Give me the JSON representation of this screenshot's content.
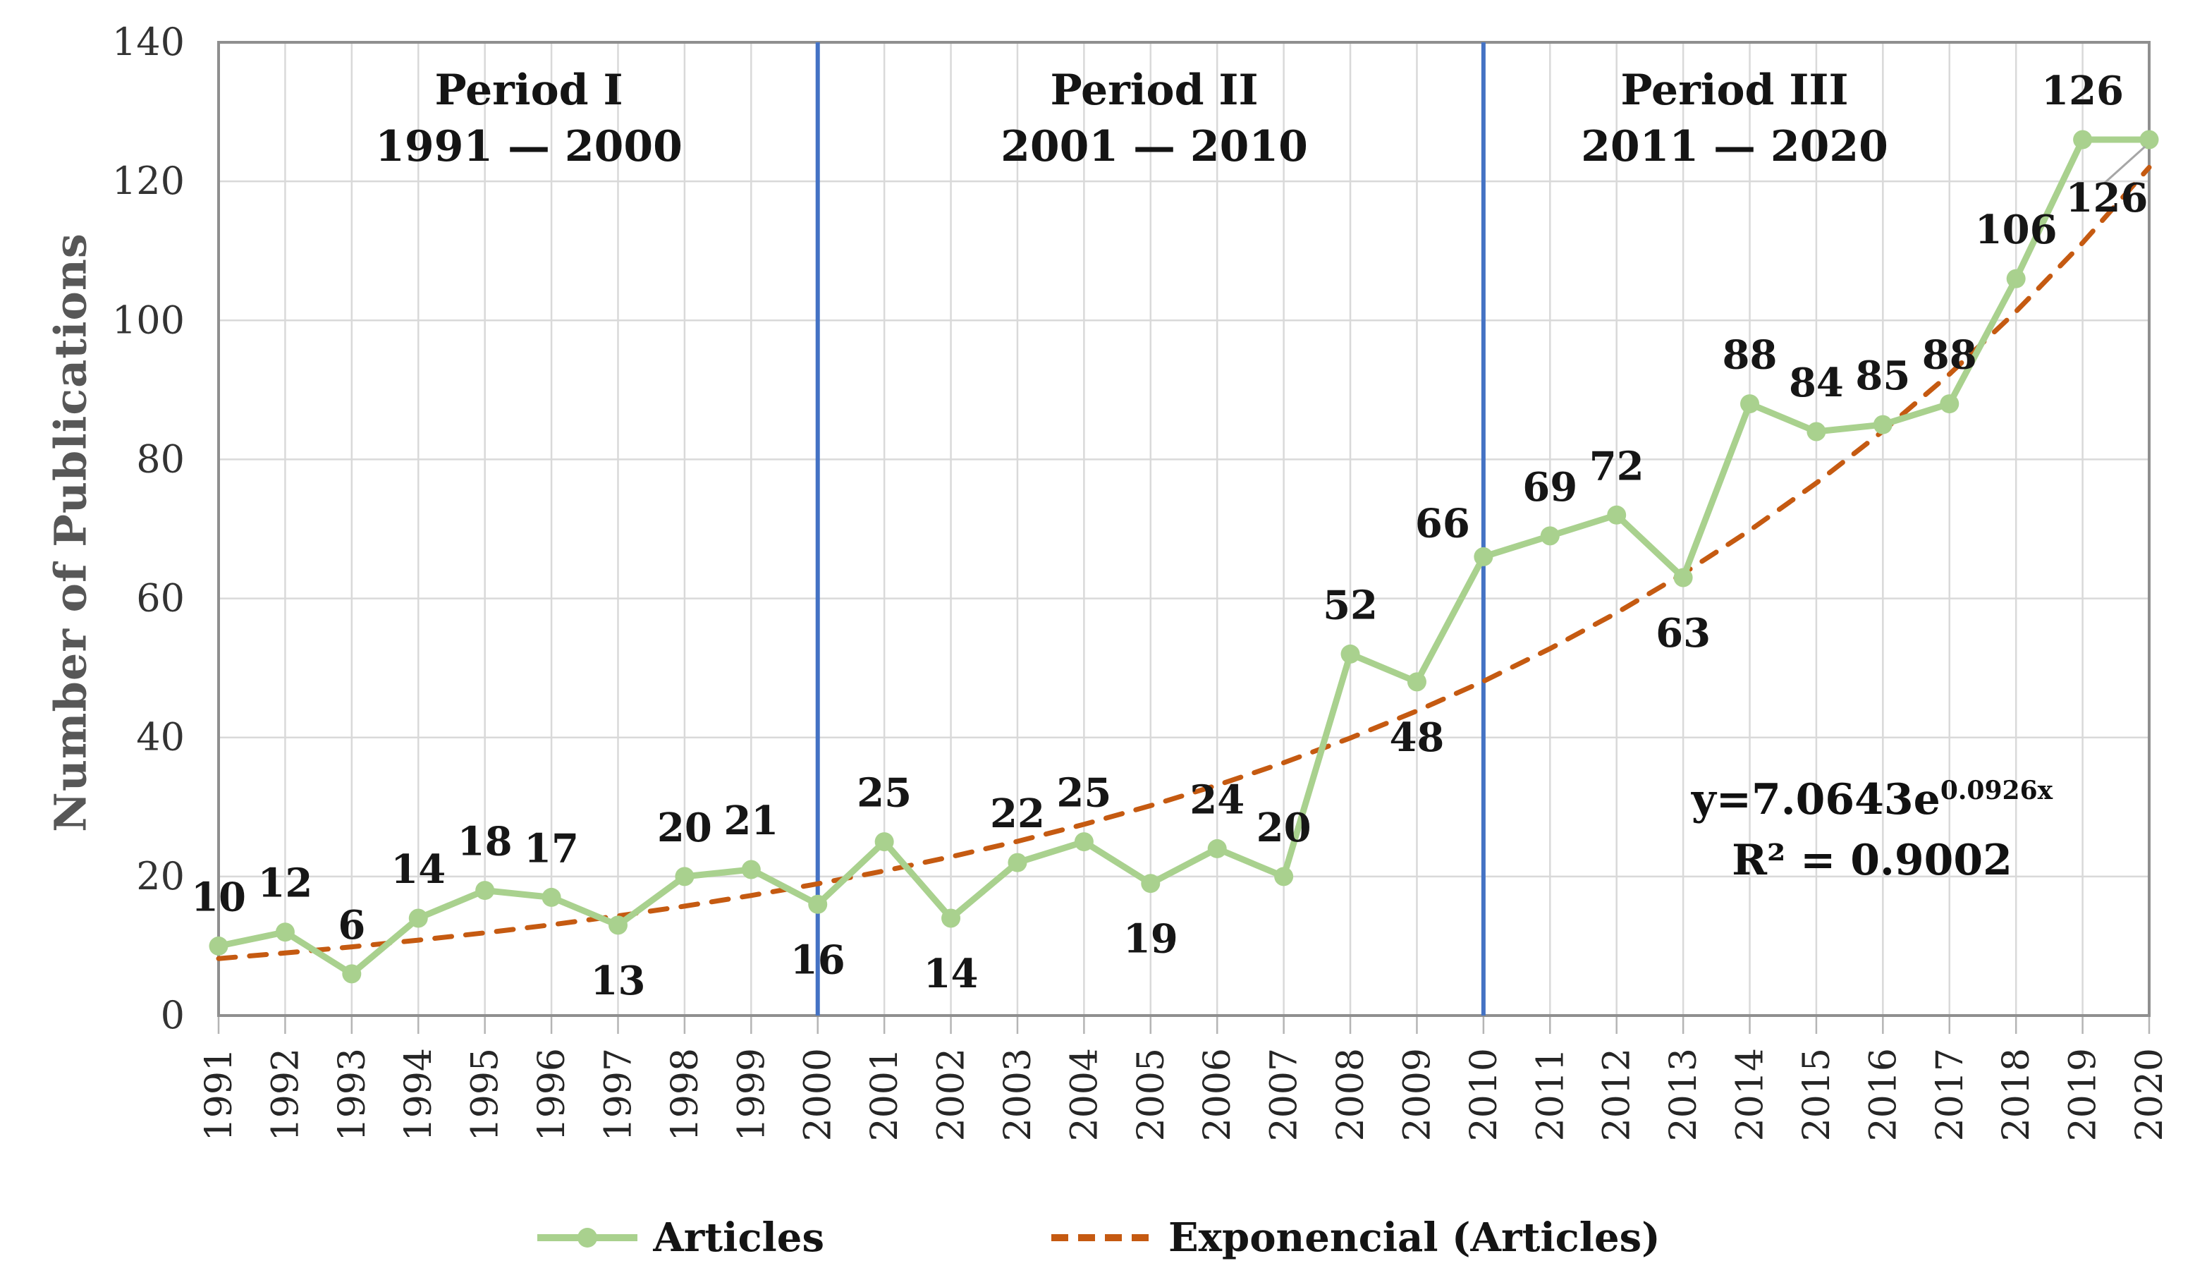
{
  "chart_data": {
    "type": "line",
    "title": "",
    "ylabel": "Number of Publications",
    "xlabel": "",
    "x": [
      1991,
      1992,
      1993,
      1994,
      1995,
      1996,
      1997,
      1998,
      1999,
      2000,
      2001,
      2002,
      2003,
      2004,
      2005,
      2006,
      2007,
      2008,
      2009,
      2010,
      2011,
      2012,
      2013,
      2014,
      2015,
      2016,
      2017,
      2018,
      2019,
      2020
    ],
    "series": [
      {
        "name": "Articles",
        "type": "line_with_markers",
        "color": "#a9d18e",
        "values": [
          10,
          12,
          6,
          14,
          18,
          17,
          13,
          20,
          21,
          16,
          25,
          14,
          22,
          25,
          19,
          24,
          20,
          52,
          48,
          66,
          69,
          72,
          63,
          88,
          84,
          85,
          88,
          106,
          126,
          126
        ]
      },
      {
        "name": "Exponencial (Articles)",
        "type": "exponential_trendline",
        "color": "#c55a11",
        "equation": "y=7.0643e^0.0926x",
        "r_squared": 0.9002
      }
    ],
    "ylim": [
      0,
      140
    ],
    "yticks": [
      0,
      20,
      40,
      60,
      80,
      100,
      120,
      140
    ],
    "grid": true,
    "legend_position": "bottom",
    "periods": [
      {
        "label": "Period I",
        "range": "1991 — 2000"
      },
      {
        "label": "Period II",
        "range": "2001 — 2010"
      },
      {
        "label": "Period III",
        "range": "2011 — 2020"
      }
    ],
    "separator_years": [
      2000,
      2010
    ],
    "labels_below_years": [
      1997,
      2000,
      2002,
      2005,
      2009,
      2013
    ],
    "label_offsets": {
      "2010": [
        -58,
        -48
      ],
      "2020": [
        -60,
        82
      ]
    },
    "leader_line_year": 2020
  },
  "annotations": {
    "equation_base": "y=7.0643e",
    "equation_exponent": "0.0926x",
    "r_squared_text": "R² = 0.9002"
  },
  "colors": {
    "articles_green": "#a9d18e",
    "trend_orange": "#c55a11",
    "separator_blue": "#4472c4",
    "gridline": "#d9d9d9",
    "plot_border": "#8f8f8f",
    "tick": "#b5b5b5",
    "data_label": "#161616",
    "axis_label": "#333333",
    "year_label": "#262626",
    "leader_gray": "#a6a6a6"
  }
}
